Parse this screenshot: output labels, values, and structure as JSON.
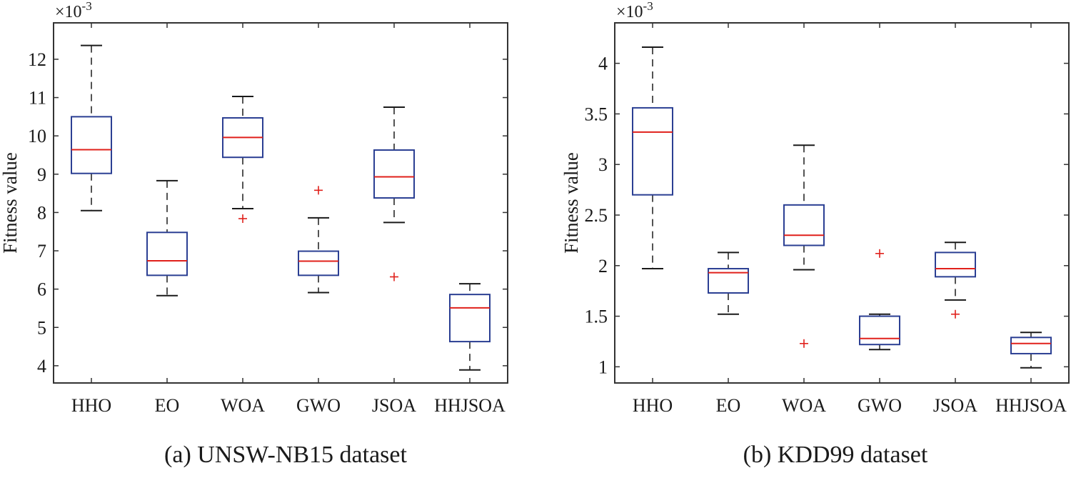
{
  "chart_data": [
    {
      "type": "box",
      "caption": "(a) UNSW-NB15 dataset",
      "ylabel": "Fitness value",
      "exponent_label": "×10",
      "exponent_power": "-3",
      "ylim": [
        3.55,
        12.95
      ],
      "yticks": [
        4,
        5,
        6,
        7,
        8,
        9,
        10,
        11,
        12
      ],
      "yticklabels": [
        "4",
        "5",
        "6",
        "7",
        "8",
        "9",
        "10",
        "11",
        "12"
      ],
      "categories": [
        "HHO",
        "EO",
        "WOA",
        "GWO",
        "JSOA",
        "HHJSOA"
      ],
      "boxes": [
        {
          "category": "HHO",
          "whisker_low": 8.05,
          "q1": 9.02,
          "median": 9.64,
          "q3": 10.5,
          "whisker_high": 12.36,
          "outliers": []
        },
        {
          "category": "EO",
          "whisker_low": 5.83,
          "q1": 6.36,
          "median": 6.74,
          "q3": 7.48,
          "whisker_high": 8.83,
          "outliers": []
        },
        {
          "category": "WOA",
          "whisker_low": 8.1,
          "q1": 9.44,
          "median": 9.96,
          "q3": 10.47,
          "whisker_high": 11.03,
          "outliers": [
            7.84
          ]
        },
        {
          "category": "GWO",
          "whisker_low": 5.91,
          "q1": 6.36,
          "median": 6.73,
          "q3": 6.99,
          "whisker_high": 7.86,
          "outliers": [
            8.58
          ]
        },
        {
          "category": "JSOA",
          "whisker_low": 7.74,
          "q1": 8.38,
          "median": 8.93,
          "q3": 9.63,
          "whisker_high": 10.75,
          "outliers": [
            6.32
          ]
        },
        {
          "category": "HHJSOA",
          "whisker_low": 3.89,
          "q1": 4.63,
          "median": 5.51,
          "q3": 5.86,
          "whisker_high": 6.14,
          "outliers": []
        }
      ]
    },
    {
      "type": "box",
      "caption": "(b) KDD99 dataset",
      "ylabel": "Fitness value",
      "exponent_label": "×10",
      "exponent_power": "-3",
      "ylim": [
        0.84,
        4.4
      ],
      "yticks": [
        1,
        1.5,
        2,
        2.5,
        3,
        3.5,
        4
      ],
      "yticklabels": [
        "1",
        "1.5",
        "2",
        "2.5",
        "3",
        "3.5",
        "4"
      ],
      "categories": [
        "HHO",
        "EO",
        "WOA",
        "GWO",
        "JSOA",
        "HHJSOA"
      ],
      "boxes": [
        {
          "category": "HHO",
          "whisker_low": 1.97,
          "q1": 2.7,
          "median": 3.32,
          "q3": 3.56,
          "whisker_high": 4.16,
          "outliers": []
        },
        {
          "category": "EO",
          "whisker_low": 1.52,
          "q1": 1.73,
          "median": 1.93,
          "q3": 1.97,
          "whisker_high": 2.13,
          "outliers": []
        },
        {
          "category": "WOA",
          "whisker_low": 1.96,
          "q1": 2.2,
          "median": 2.3,
          "q3": 2.6,
          "whisker_high": 3.19,
          "outliers": [
            1.23
          ]
        },
        {
          "category": "GWO",
          "whisker_low": 1.17,
          "q1": 1.22,
          "median": 1.28,
          "q3": 1.5,
          "whisker_high": 1.52,
          "outliers": [
            2.12
          ]
        },
        {
          "category": "JSOA",
          "whisker_low": 1.66,
          "q1": 1.89,
          "median": 1.97,
          "q3": 2.13,
          "whisker_high": 2.23,
          "outliers": [
            1.52
          ]
        },
        {
          "category": "HHJSOA",
          "whisker_low": 0.99,
          "q1": 1.13,
          "median": 1.23,
          "q3": 1.29,
          "whisker_high": 1.34,
          "outliers": []
        }
      ]
    }
  ],
  "colors": {
    "box": "#2b3f93",
    "median": "#e0201b",
    "outlier": "#e0201b",
    "whisker": "#1a1a1a",
    "axes": "#333333"
  }
}
